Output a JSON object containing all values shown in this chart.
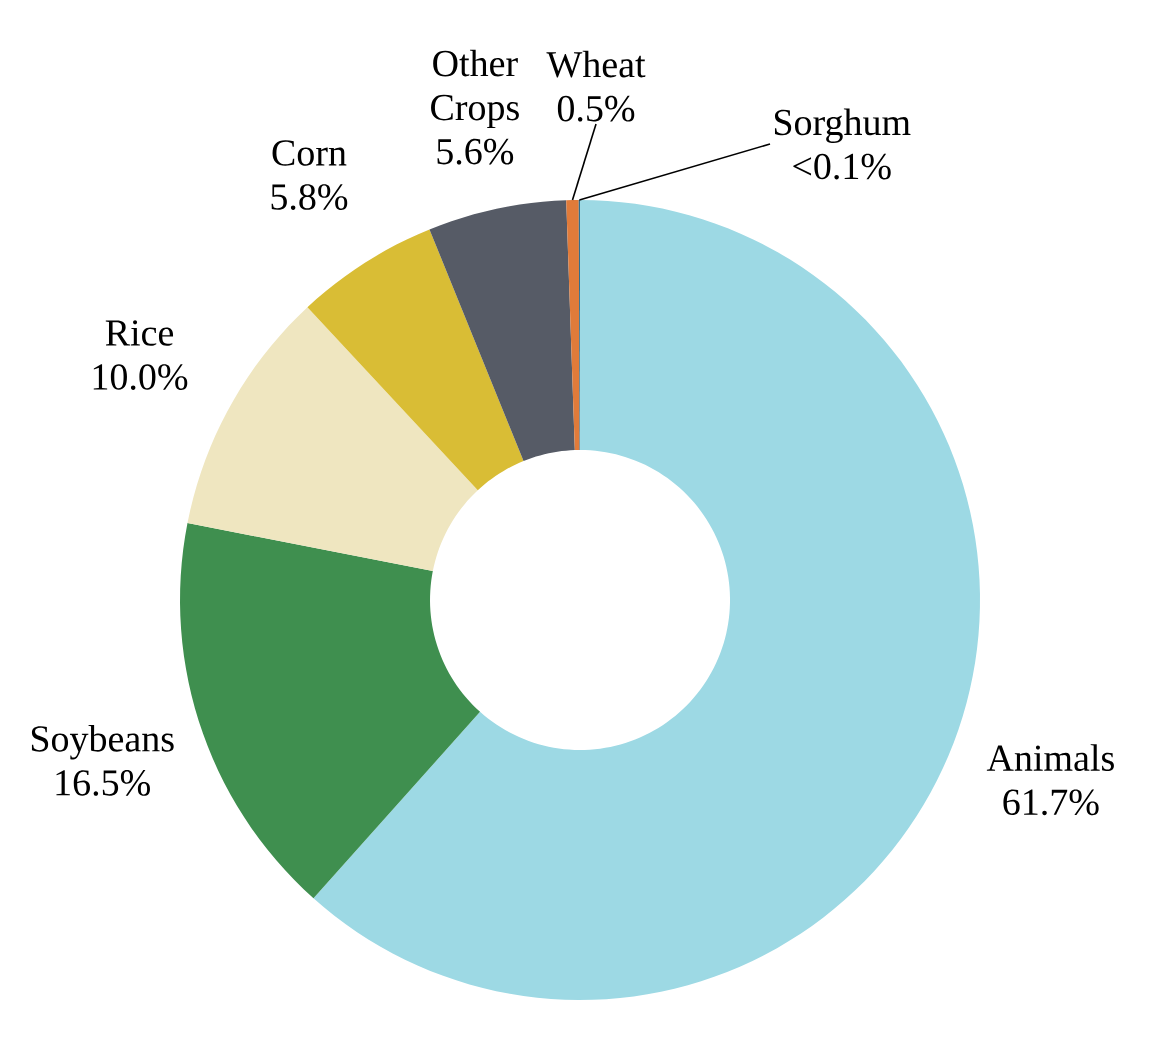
{
  "chart_data": {
    "type": "donut",
    "categories": [
      "Animals",
      "Soybeans",
      "Rice",
      "Corn",
      "Other Crops",
      "Wheat",
      "Sorghum"
    ],
    "values": [
      61.7,
      16.5,
      10.0,
      5.8,
      5.6,
      0.5,
      0.05
    ],
    "value_labels": [
      "61.7%",
      "16.5%",
      "10.0%",
      "5.8%",
      "5.6%",
      "0.5%",
      "<0.1%"
    ],
    "colors": [
      "#9dd9e4",
      "#3f8f4f",
      "#efe6c0",
      "#d9bd35",
      "#565b66",
      "#e07b3a",
      "#2f6f8f"
    ]
  }
}
